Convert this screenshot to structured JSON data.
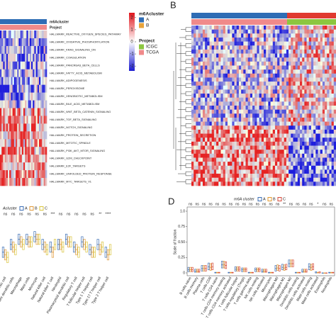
{
  "chart_data": [
    {
      "type": "heatmap",
      "rows": [
        "HALLMARK_REACTIVE_OXYGEN_SPECIES_PATHWAY",
        "HALLMARK_OXIDATIVE_PHOSPHORYLATION",
        "HALLMARK_KRAS_SIGNALING_DN",
        "HALLMARK_COAGULATION",
        "HALLMARK_PANCREAS_BETA_CELLS",
        "HALLMARK_FATTY_ACID_METABOLISM",
        "HALLMARK_ADIPOGENESIS",
        "HALLMARK_PEROXISOME",
        "HALLMARK_XENOBIOTIC_METABOLISM",
        "HALLMARK_BILE_ACID_METABOLISM",
        "HALLMARK_WNT_BETA_CATENIN_SIGNALING",
        "HALLMARK_TGF_BETA_SIGNALING",
        "HALLMARK_NOTCH_SIGNALING",
        "HALLMARK_PROTEIN_SECRETION",
        "HALLMARK_MITOTIC_SPINDLE",
        "HALLMARK_PI3K_AKT_MTOR_SIGNALING",
        "HALLMARK_G2M_CHECKPOINT",
        "HALLMARK_E2F_TARGETS",
        "HALLMARK_UNFOLDED_PROTEIN_RESPONSE",
        "HALLMARK_MYC_TARGETS_V1"
      ],
      "annotation_labels": [
        "m6Acluster",
        "Project"
      ],
      "colorbar_lim": [
        -2.4,
        2.4
      ],
      "colorbar_ticks": [
        2,
        1,
        0,
        -1,
        -2
      ],
      "legend": [
        {
          "title": "m6Acluster",
          "items": [
            {
              "name": "A",
              "color": "#2f6db5"
            },
            {
              "name": "B",
              "color": "#e8a33a"
            }
          ]
        },
        {
          "title": "Project",
          "items": [
            {
              "name": "ICGC",
              "color": "#8cc63f"
            },
            {
              "name": "TCGA",
              "color": "#f08a8a"
            }
          ]
        }
      ]
    },
    {
      "type": "heatmap",
      "panel": "B"
    },
    {
      "type": "box",
      "legend_title": "Acluster",
      "categories": [
        "Activated dendritic cell",
        "Immature dendritic cells",
        "Macrophage",
        "Mast cells",
        "Monocyte",
        "Natural killer cell",
        "Natural killer T cell",
        "Neutrophil",
        "Plasmacytoid dendritic cell",
        "Regulatory T cell",
        "T follicular helper cell",
        "Type 1 T helper cell",
        "Type 17 T helper cell",
        "Type 2 T helper cell"
      ],
      "significance": [
        "ns",
        "ns",
        "ns",
        "ns",
        "ns",
        "ns",
        "***",
        "ns",
        "ns",
        "ns",
        "ns",
        "ns",
        "**",
        "****"
      ],
      "ylim": [
        0,
        1
      ],
      "series": [
        {
          "name": "A",
          "color": "#3d6fb5",
          "q1": [
            0.3,
            0.45,
            0.55,
            0.55,
            0.6,
            0.45,
            0.4,
            0.45,
            0.55,
            0.4,
            0.5,
            0.35,
            0.45,
            0.3
          ],
          "median": [
            0.4,
            0.55,
            0.65,
            0.65,
            0.7,
            0.55,
            0.5,
            0.55,
            0.65,
            0.5,
            0.6,
            0.45,
            0.55,
            0.4
          ],
          "q3": [
            0.5,
            0.65,
            0.75,
            0.75,
            0.8,
            0.65,
            0.6,
            0.65,
            0.75,
            0.6,
            0.7,
            0.55,
            0.65,
            0.5
          ]
        },
        {
          "name": "B",
          "color": "#e09a3a",
          "q1": [
            0.25,
            0.4,
            0.5,
            0.5,
            0.55,
            0.4,
            0.3,
            0.45,
            0.5,
            0.35,
            0.45,
            0.3,
            0.35,
            0.25
          ],
          "median": [
            0.35,
            0.5,
            0.6,
            0.6,
            0.65,
            0.5,
            0.4,
            0.55,
            0.6,
            0.45,
            0.55,
            0.4,
            0.45,
            0.35
          ],
          "q3": [
            0.45,
            0.6,
            0.7,
            0.7,
            0.75,
            0.6,
            0.5,
            0.65,
            0.7,
            0.55,
            0.65,
            0.5,
            0.55,
            0.45
          ]
        },
        {
          "name": "C",
          "color": "#d9c43d",
          "q1": [
            0.2,
            0.35,
            0.45,
            0.5,
            0.55,
            0.35,
            0.45,
            0.4,
            0.5,
            0.3,
            0.4,
            0.3,
            0.4,
            0.35
          ],
          "median": [
            0.3,
            0.45,
            0.55,
            0.6,
            0.65,
            0.45,
            0.55,
            0.5,
            0.6,
            0.4,
            0.5,
            0.4,
            0.5,
            0.45
          ],
          "q3": [
            0.4,
            0.55,
            0.65,
            0.7,
            0.75,
            0.55,
            0.65,
            0.6,
            0.7,
            0.5,
            0.6,
            0.5,
            0.6,
            0.55
          ]
        }
      ]
    },
    {
      "type": "box",
      "panel": "D",
      "legend_title": "m6A cluster",
      "y_label": "Scale of fraction",
      "categories": [
        "B cells naive",
        "B cells memory",
        "Plasma cells",
        "T cells CD8",
        "T cells CD4 naive",
        "T cells CD4 memory resting",
        "T cells CD4 memory activated",
        "T cells follicular helper",
        "T cells regulatory (Tregs)",
        "T cells gamma delta",
        "NK cells resting",
        "NK cells activated",
        "Monocytes",
        "Macrophages M0",
        "Macrophages M1",
        "Macrophages M2",
        "Dendritic cells resting",
        "Dendritic cells activated",
        "Mast cells resting",
        "Mast cells activated",
        "Eosinophils",
        "Neutrophils"
      ],
      "significance": [
        "ns",
        "ns",
        "ns",
        "ns",
        "ns",
        "ns",
        "ns",
        "ns",
        "ns",
        "ns",
        "ns",
        "ns",
        "ns",
        "ns",
        "**",
        "ns",
        "ns",
        "ns",
        "ns",
        "*",
        "ns",
        "ns"
      ],
      "ylim": [
        0,
        1
      ],
      "yticks": [
        0,
        0.25,
        {
          "value": 0.5,
          "label": "0.50"
        },
        0.75,
        {
          "value": 1,
          "label": "1.0"
        }
      ],
      "series": [
        {
          "name": "A",
          "color": "#3d6fb5",
          "q1": [
            0.02,
            0.01,
            0.03,
            0.05,
            0,
            0.08,
            0,
            0.03,
            0.02,
            0,
            0.02,
            0.01,
            0,
            0.03,
            0.05,
            0.1,
            0,
            0.01,
            0.05,
            0,
            0,
            0
          ],
          "median": [
            0.05,
            0.03,
            0.07,
            0.1,
            0,
            0.13,
            0,
            0.06,
            0.05,
            0,
            0.05,
            0.03,
            0,
            0.07,
            0.09,
            0.15,
            0,
            0.03,
            0.1,
            0,
            0,
            0
          ],
          "q3": [
            0.09,
            0.06,
            0.12,
            0.16,
            0.01,
            0.19,
            0.01,
            0.1,
            0.08,
            0.01,
            0.08,
            0.06,
            0.01,
            0.12,
            0.14,
            0.21,
            0.01,
            0.06,
            0.15,
            0.02,
            0,
            0.01
          ]
        },
        {
          "name": "B",
          "color": "#e39a2f",
          "q1": [
            0.02,
            0.01,
            0.03,
            0.04,
            0,
            0.08,
            0,
            0.03,
            0.02,
            0,
            0.02,
            0.01,
            0,
            0.04,
            0.04,
            0.1,
            0,
            0.01,
            0.04,
            0,
            0,
            0
          ],
          "median": [
            0.05,
            0.03,
            0.07,
            0.09,
            0,
            0.13,
            0,
            0.06,
            0.05,
            0,
            0.05,
            0.03,
            0,
            0.08,
            0.08,
            0.15,
            0,
            0.03,
            0.09,
            0,
            0,
            0
          ],
          "q3": [
            0.09,
            0.06,
            0.12,
            0.15,
            0.01,
            0.19,
            0.01,
            0.1,
            0.08,
            0.01,
            0.08,
            0.06,
            0.01,
            0.13,
            0.13,
            0.21,
            0.01,
            0.06,
            0.14,
            0.01,
            0,
            0.01
          ]
        },
        {
          "name": "C",
          "color": "#d64a3b",
          "q1": [
            0.02,
            0.01,
            0.03,
            0.05,
            0,
            0.07,
            0,
            0.03,
            0.02,
            0,
            0.02,
            0.01,
            0,
            0.03,
            0.05,
            0.1,
            0,
            0.01,
            0.05,
            0,
            0,
            0
          ],
          "median": [
            0.05,
            0.03,
            0.07,
            0.1,
            0,
            0.12,
            0,
            0.06,
            0.05,
            0,
            0.05,
            0.03,
            0,
            0.07,
            0.09,
            0.15,
            0,
            0.03,
            0.1,
            0,
            0,
            0
          ],
          "q3": [
            0.09,
            0.06,
            0.12,
            0.16,
            0.01,
            0.18,
            0.01,
            0.1,
            0.08,
            0.01,
            0.08,
            0.06,
            0.01,
            0.12,
            0.14,
            0.21,
            0.01,
            0.06,
            0.15,
            0.02,
            0,
            0.01
          ]
        }
      ]
    }
  ]
}
